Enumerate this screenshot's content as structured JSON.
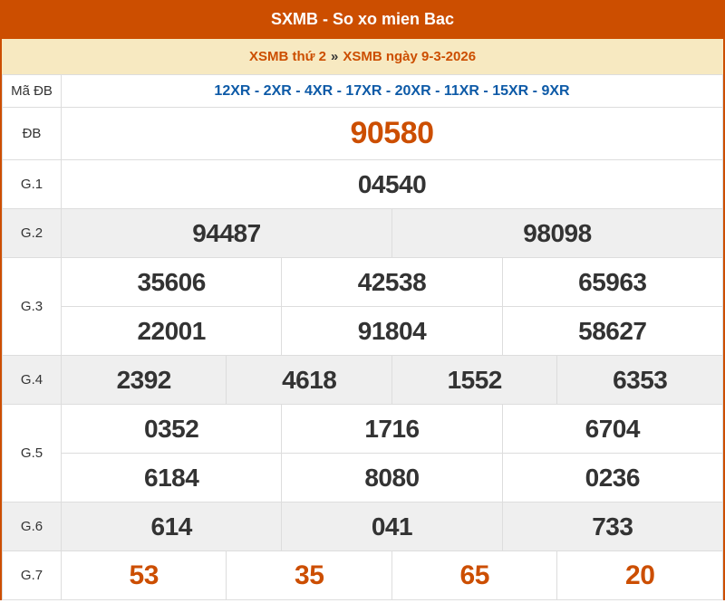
{
  "header": {
    "title": "SXMB - So xo mien Bac"
  },
  "subheader": {
    "link1": "XSMB thứ 2",
    "separator": "»",
    "link2": "XSMB ngày 9-3-2026"
  },
  "colors": {
    "brand": "#cc4e00",
    "subheader_bg": "#f7e9c1",
    "code_text": "#0d5aa7",
    "gray_row": "#efefef"
  },
  "results": {
    "code_label": "Mã ĐB",
    "code": "12XR - 2XR - 4XR - 17XR - 20XR - 11XR - 15XR - 9XR",
    "db_label": "ĐB",
    "db": "90580",
    "g1_label": "G.1",
    "g1": [
      "04540"
    ],
    "g2_label": "G.2",
    "g2": [
      "94487",
      "98098"
    ],
    "g3_label": "G.3",
    "g3": [
      "35606",
      "42538",
      "65963",
      "22001",
      "91804",
      "58627"
    ],
    "g4_label": "G.4",
    "g4": [
      "2392",
      "4618",
      "1552",
      "6353"
    ],
    "g5_label": "G.5",
    "g5": [
      "0352",
      "1716",
      "6704",
      "6184",
      "8080",
      "0236"
    ],
    "g6_label": "G.6",
    "g6": [
      "614",
      "041",
      "733"
    ],
    "g7_label": "G.7",
    "g7": [
      "53",
      "35",
      "65",
      "20"
    ]
  }
}
